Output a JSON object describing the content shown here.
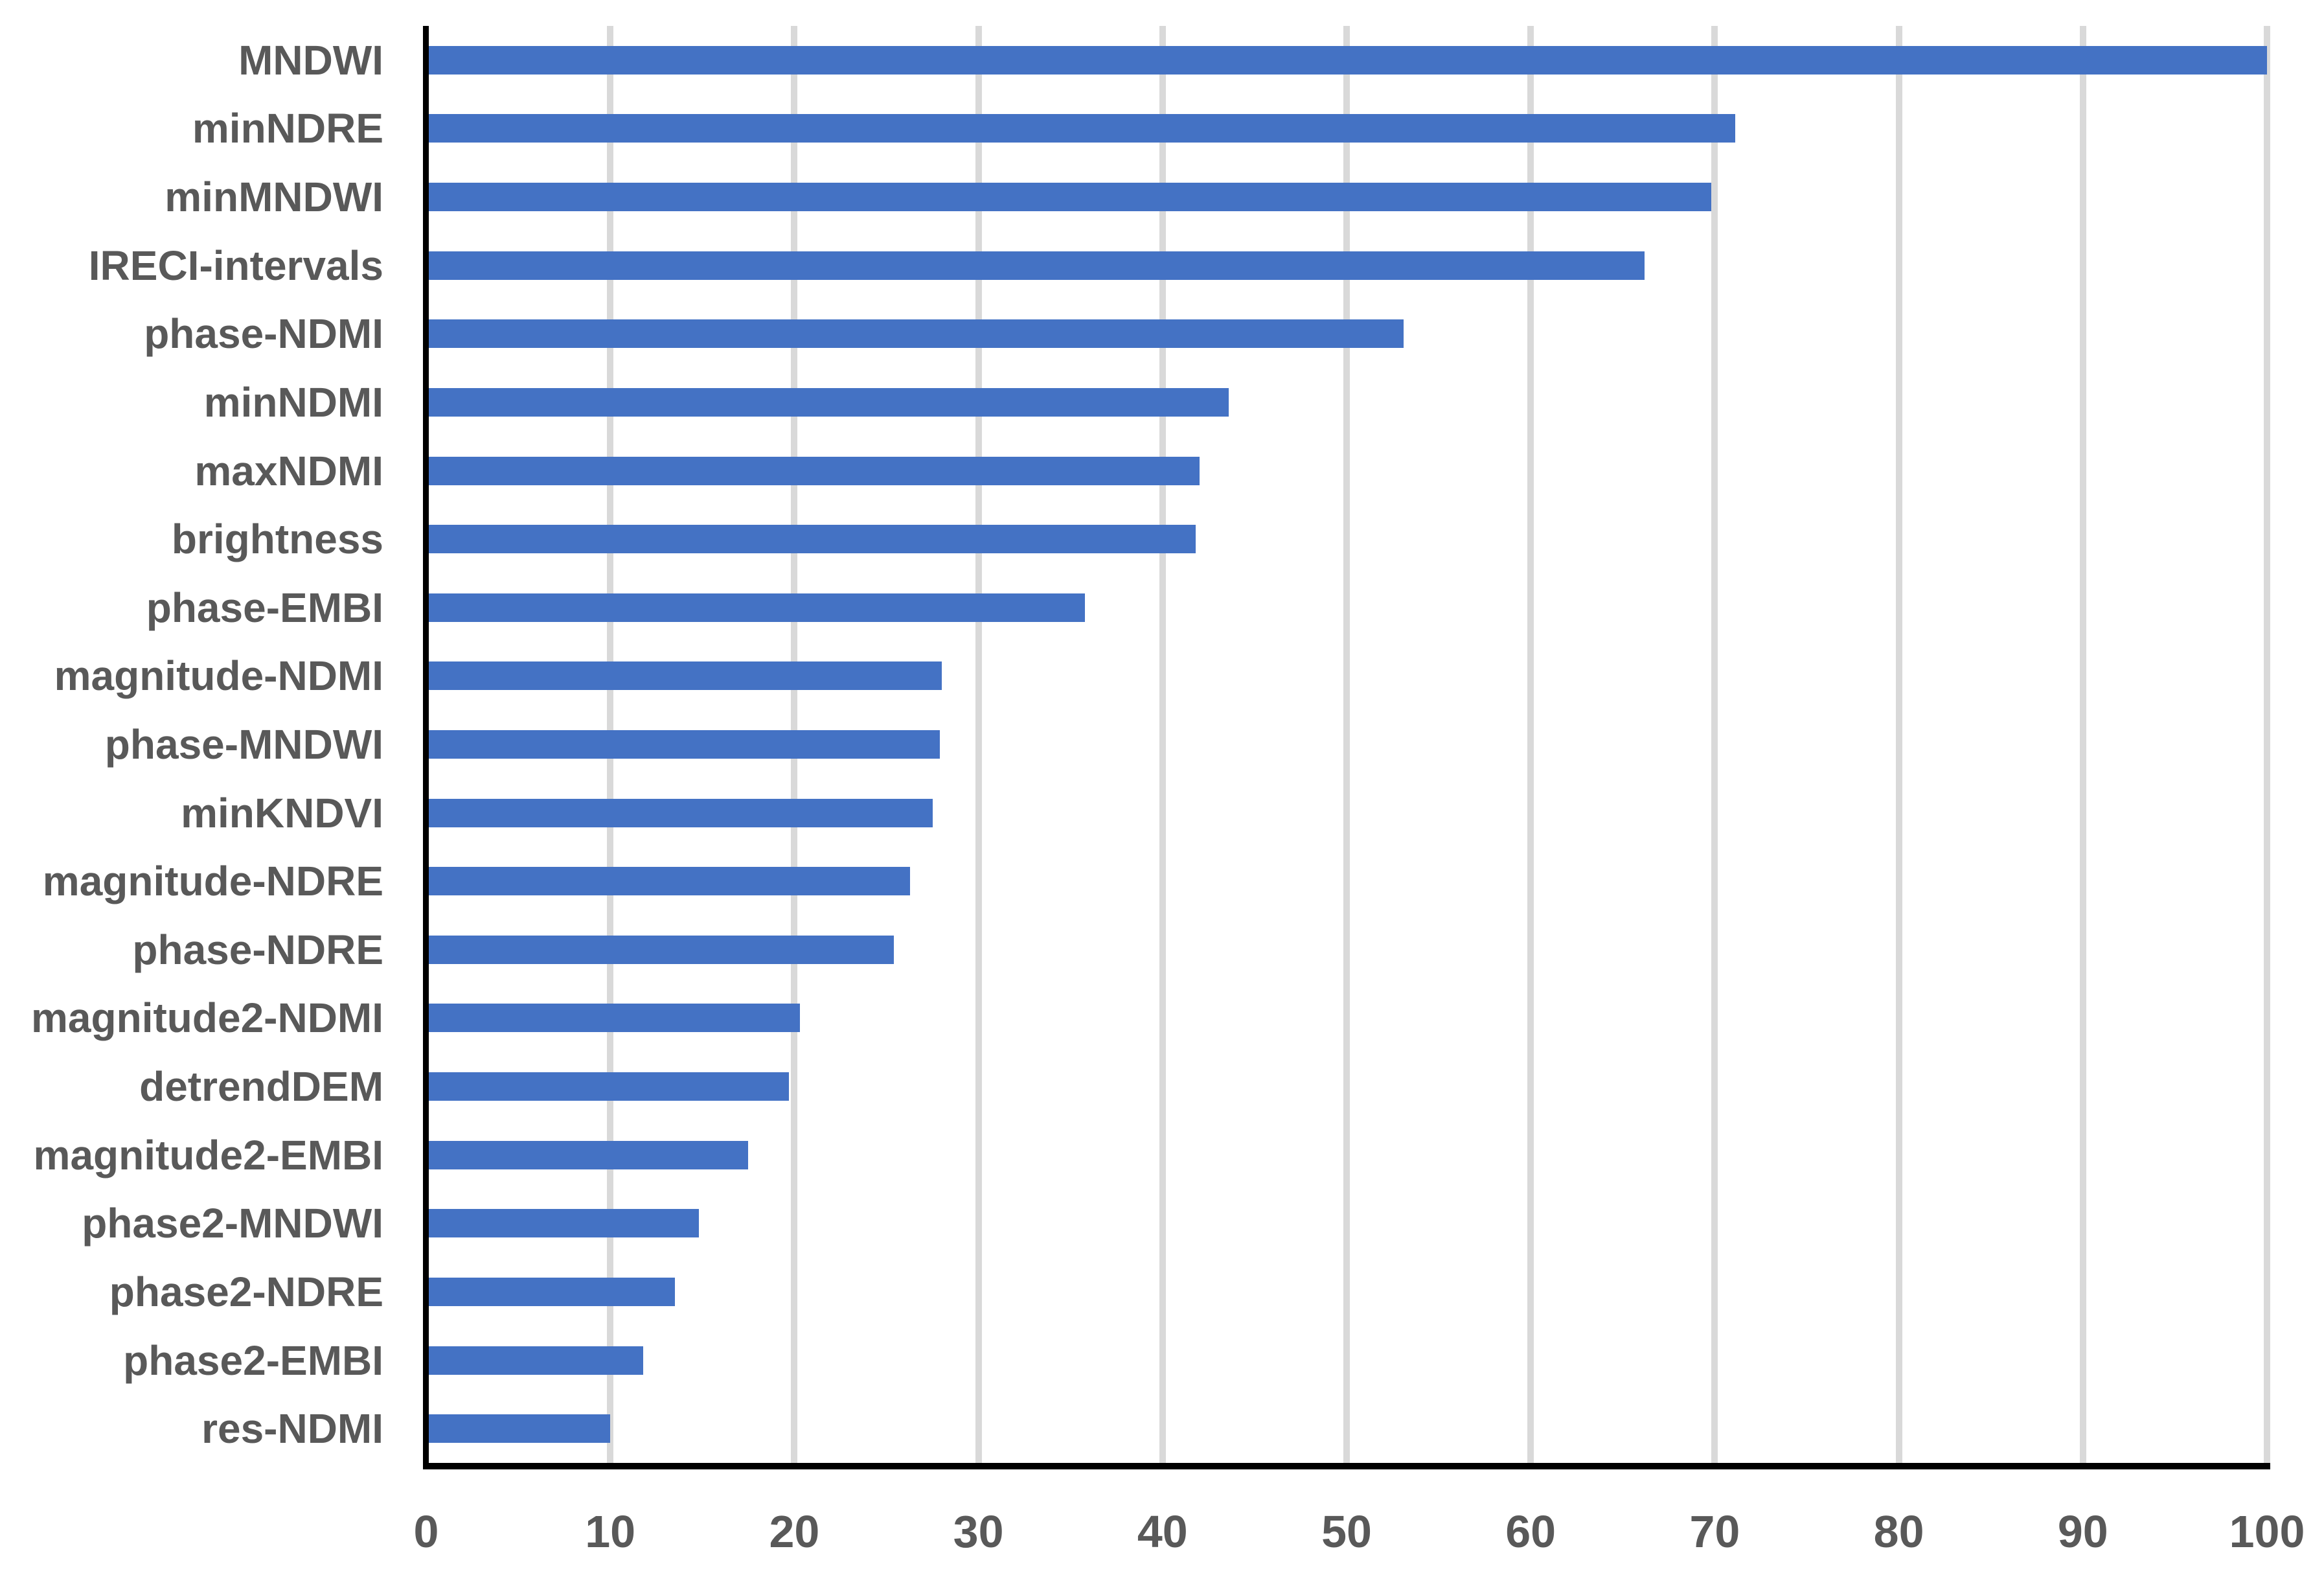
{
  "chart_data": {
    "type": "bar",
    "orientation": "horizontal",
    "title": "",
    "xlabel": "",
    "ylabel": "",
    "xlim": [
      0,
      100
    ],
    "x_ticks": [
      0,
      10,
      20,
      30,
      40,
      50,
      60,
      70,
      80,
      90,
      100
    ],
    "grid": true,
    "legend": false,
    "categories": [
      "MNDWI",
      "minNDRE",
      "minMNDWI",
      "IRECI-intervals",
      "phase-NDMI",
      "minNDMI",
      "maxNDMI",
      "brightness",
      "phase-EMBI",
      "magnitude-NDMI",
      "phase-MNDWI",
      "minKNDVI",
      "magnitude-NDRE",
      "phase-NDRE",
      "magnitude2-NDMI",
      "detrendDEM",
      "magnitude2-EMBI",
      "phase2-MNDWI",
      "phase2-NDRE",
      "phase2-EMBI",
      "res-NDMI"
    ],
    "values": [
      100,
      71.1,
      69.8,
      66.2,
      53.1,
      43.6,
      42.0,
      41.8,
      35.8,
      28.0,
      27.9,
      27.5,
      26.3,
      25.4,
      20.3,
      19.7,
      17.5,
      14.8,
      13.5,
      11.8,
      10.0
    ],
    "colors": {
      "bar": "#4472C4",
      "gridline": "#D9D9D9",
      "axis_line": "#000000",
      "tick_label": "#595959",
      "category_label": "#595959",
      "background": "#FFFFFF"
    }
  }
}
